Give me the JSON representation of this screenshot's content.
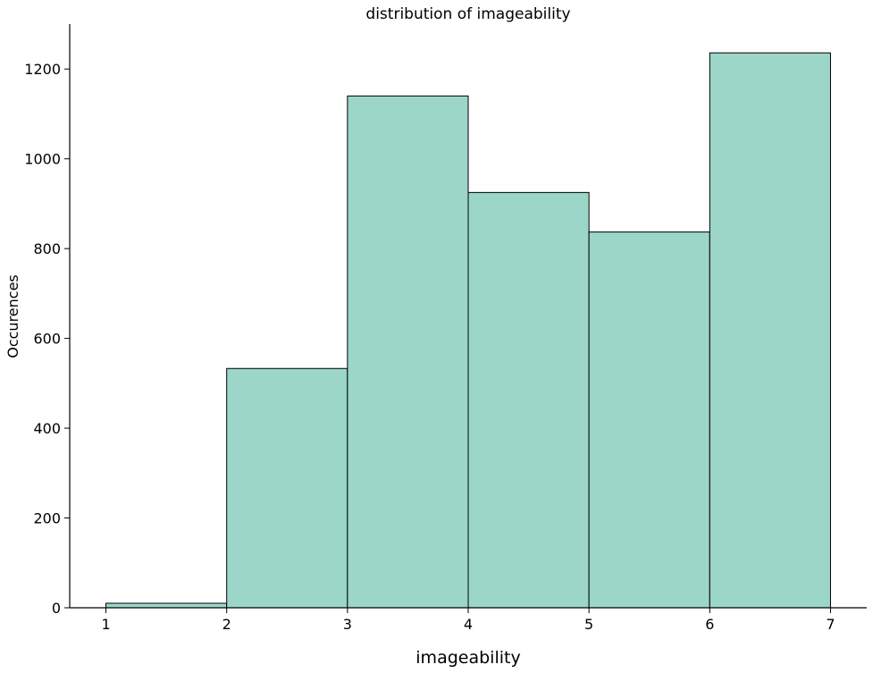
{
  "chart_data": {
    "type": "bar",
    "title": "distribution of imageability",
    "xlabel": "imageability",
    "ylabel": "Occurences",
    "bins": [
      {
        "x0": 1,
        "x1": 2,
        "value": 10
      },
      {
        "x0": 2,
        "x1": 3,
        "value": 533
      },
      {
        "x0": 3,
        "x1": 4,
        "value": 1140
      },
      {
        "x0": 4,
        "x1": 5,
        "value": 925
      },
      {
        "x0": 5,
        "x1": 6,
        "value": 837
      },
      {
        "x0": 6,
        "x1": 7,
        "value": 1236
      }
    ],
    "xticks": [
      1,
      2,
      3,
      4,
      5,
      6,
      7
    ],
    "yticks": [
      0,
      200,
      400,
      600,
      800,
      1000,
      1200
    ],
    "xlim": [
      0.7,
      7.3
    ],
    "ylim": [
      0,
      1300
    ],
    "grid": false,
    "bar_color": "#9bd6c8",
    "edge_color": "#000000"
  }
}
